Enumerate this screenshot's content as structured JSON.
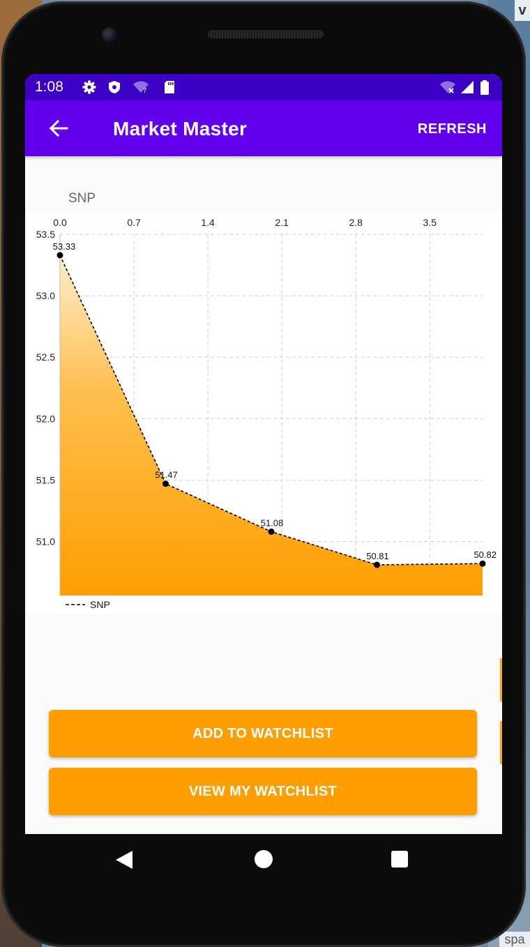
{
  "background": {
    "top_tag": "v",
    "bottom_tag": "spa"
  },
  "status_bar": {
    "time": "1:08",
    "left_icons": [
      "gear-icon",
      "shield-icon",
      "wifi-question-icon",
      "sd-card-icon"
    ],
    "right_icons": [
      "wifi-off-icon",
      "signal-icon",
      "battery-icon"
    ],
    "color": "#3b00c4"
  },
  "app_bar": {
    "title": "Market Master",
    "action": "REFRESH",
    "back_icon": "arrow-back-icon",
    "color": "#6200ee"
  },
  "chart_label": "SNP",
  "chart_data": {
    "type": "area",
    "x_axis_position": "top",
    "xlim": [
      0,
      4
    ],
    "ylim": [
      50.56,
      53.5
    ],
    "x_ticks": [
      "0.0",
      "0.7",
      "1.4",
      "2.1",
      "2.8",
      "3.5"
    ],
    "y_ticks": [
      "53.5",
      "53.0",
      "52.5",
      "52.0",
      "51.5",
      "51.0"
    ],
    "grid": true,
    "legend": "bottom-left",
    "series": [
      {
        "name": "SNP",
        "x": [
          0,
          1,
          2,
          3,
          4
        ],
        "y": [
          53.33,
          51.47,
          51.08,
          50.81,
          50.82
        ],
        "labels": [
          "53.33",
          "51.47",
          "51.08",
          "50.81",
          "50.82"
        ],
        "line_style": "dashed",
        "line_color": "#000000",
        "fill_gradient": [
          "#ffedc9",
          "#ff9e00"
        ]
      }
    ]
  },
  "buttons": {
    "add_to_watchlist": "ADD TO WATCHLIST",
    "view_watchlist": "VIEW MY WATCHLIST",
    "color": "#ff9e00"
  },
  "nav_bar": {
    "back": "nav-back-icon",
    "home": "nav-home-icon",
    "recents": "nav-recents-icon"
  }
}
